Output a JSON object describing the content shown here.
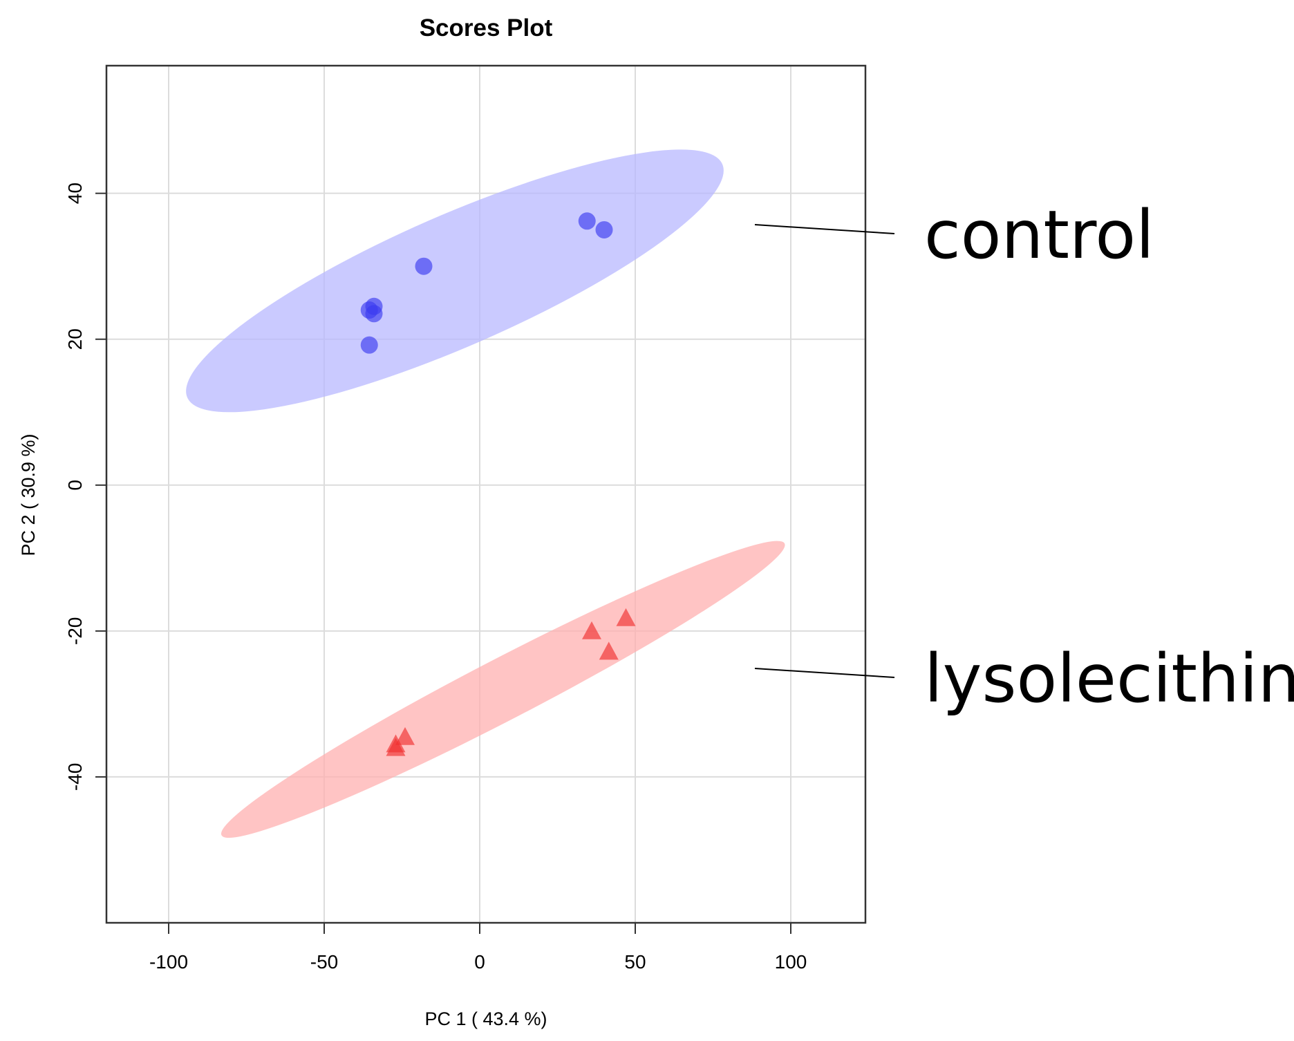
{
  "chart_data": {
    "type": "scatter",
    "title": "Scores Plot",
    "xlabel": "PC 1 ( 43.4 %)",
    "ylabel": "PC 2 ( 30.9 %)",
    "xlim": [
      -120,
      124
    ],
    "ylim": [
      -60,
      57.5
    ],
    "xticks": [
      -100,
      -50,
      0,
      50,
      100
    ],
    "yticks": [
      -40,
      -20,
      0,
      20,
      40
    ],
    "xtick_labels": [
      "-100",
      "-50",
      "0",
      "50",
      "100"
    ],
    "ytick_labels": [
      "-40",
      "-20",
      "0",
      "20",
      "40"
    ],
    "grid": true,
    "series": [
      {
        "name": "control",
        "marker": "circle",
        "color": "#3a3af0",
        "ellipse_color": "#b8b8ff",
        "points": [
          {
            "x": -35.5,
            "y": 19.2
          },
          {
            "x": -34.0,
            "y": 23.5
          },
          {
            "x": -34.0,
            "y": 24.5
          },
          {
            "x": -35.5,
            "y": 24.0
          },
          {
            "x": -18.0,
            "y": 30.0
          },
          {
            "x": 34.5,
            "y": 36.2
          },
          {
            "x": 40.0,
            "y": 35.0
          }
        ],
        "ellipse": {
          "cx": -8,
          "cy": 28,
          "x_end_a": [
            78,
            44
          ],
          "x_end_b": [
            -94,
            12
          ],
          "minor_half_width": 9
        }
      },
      {
        "name": "lysolecithin",
        "marker": "triangle",
        "color": "#f03030",
        "ellipse_color": "#ffb0b0",
        "points": [
          {
            "x": -27.0,
            "y": -35.5
          },
          {
            "x": -24.0,
            "y": -34.5
          },
          {
            "x": -27.0,
            "y": -36.0
          },
          {
            "x": 36.0,
            "y": -20.0
          },
          {
            "x": 47.0,
            "y": -18.2
          },
          {
            "x": 41.5,
            "y": -22.8
          }
        ],
        "ellipse": {
          "cx": 7,
          "cy": -28,
          "x_end_a": [
            98,
            -8
          ],
          "x_end_b": [
            -83,
            -48
          ],
          "minor_half_width": 4.2
        }
      }
    ],
    "annotations": [
      {
        "text": "control",
        "points_to_series": "control"
      },
      {
        "text": "lysolecithin",
        "points_to_series": "lysolecithin"
      }
    ]
  }
}
